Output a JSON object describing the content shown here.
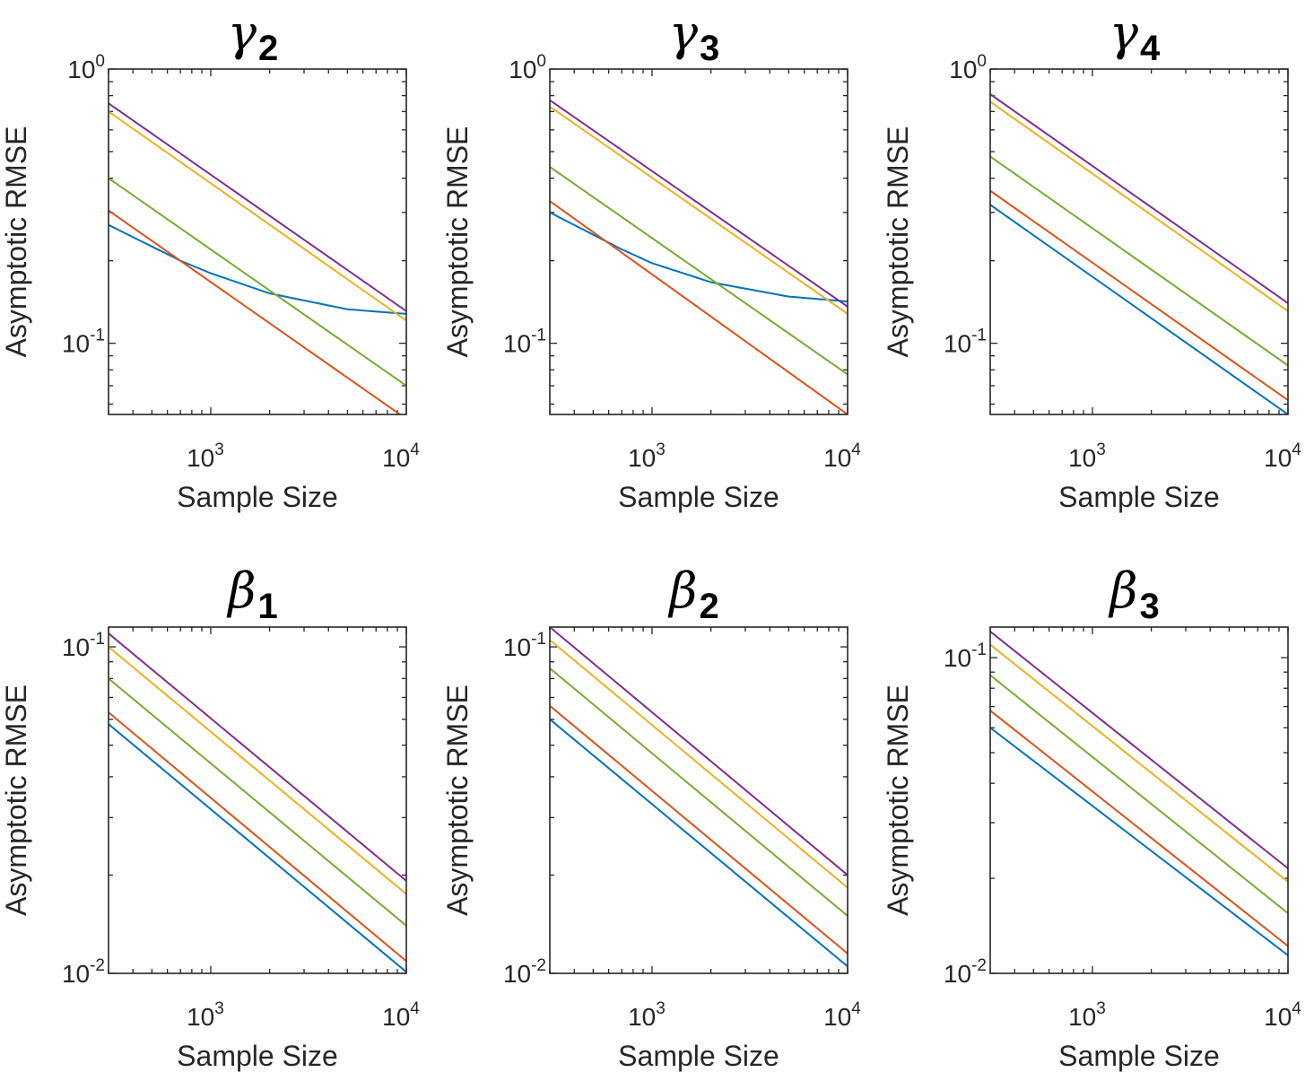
{
  "chart_data": [
    {
      "type": "line",
      "title_symbol": "γ",
      "title_subscript": "2",
      "xlabel": "Sample Size",
      "ylabel": "Asymptotic RMSE",
      "xscale": "log",
      "yscale": "log",
      "xlim": [
        300,
        10000
      ],
      "ylim": [
        0.055,
        1.0
      ],
      "xticks": [
        {
          "base": "10",
          "exp": "3",
          "value": 1000
        },
        {
          "base": "10",
          "exp": "4",
          "value": 10000
        }
      ],
      "yticks": [
        {
          "base": "10",
          "exp": "-1",
          "value": 0.1
        },
        {
          "base": "10",
          "exp": "0",
          "value": 1.0
        }
      ],
      "series": [
        {
          "name": "blue",
          "color": "#0072BD",
          "x": [
            300,
            700,
            1000,
            2000,
            5000,
            10000
          ],
          "values": [
            0.27,
            0.2,
            0.18,
            0.152,
            0.133,
            0.128
          ]
        },
        {
          "name": "red",
          "color": "#D95319",
          "x": [
            300,
            10000
          ],
          "values": [
            0.305,
            0.053
          ]
        },
        {
          "name": "yellow",
          "color": "#EDB120",
          "x": [
            300,
            10000
          ],
          "values": [
            0.7,
            0.121
          ]
        },
        {
          "name": "purple",
          "color": "#7E2F8E",
          "x": [
            300,
            10000
          ],
          "values": [
            0.75,
            0.131
          ]
        },
        {
          "name": "green",
          "color": "#77AC30",
          "x": [
            300,
            10000
          ],
          "values": [
            0.4,
            0.07
          ]
        }
      ]
    },
    {
      "type": "line",
      "title_symbol": "γ",
      "title_subscript": "3",
      "xlabel": "Sample Size",
      "ylabel": "Asymptotic RMSE",
      "xscale": "log",
      "yscale": "log",
      "xlim": [
        300,
        10000
      ],
      "ylim": [
        0.055,
        1.0
      ],
      "xticks": [
        {
          "base": "10",
          "exp": "3",
          "value": 1000
        },
        {
          "base": "10",
          "exp": "4",
          "value": 10000
        }
      ],
      "yticks": [
        {
          "base": "10",
          "exp": "-1",
          "value": 0.1
        },
        {
          "base": "10",
          "exp": "0",
          "value": 1.0
        }
      ],
      "series": [
        {
          "name": "blue",
          "color": "#0072BD",
          "x": [
            300,
            700,
            1000,
            2000,
            5000,
            10000
          ],
          "values": [
            0.3,
            0.22,
            0.196,
            0.167,
            0.148,
            0.142
          ]
        },
        {
          "name": "red",
          "color": "#D95319",
          "x": [
            300,
            10000
          ],
          "values": [
            0.33,
            0.055
          ]
        },
        {
          "name": "yellow",
          "color": "#EDB120",
          "x": [
            300,
            10000
          ],
          "values": [
            0.73,
            0.128
          ]
        },
        {
          "name": "purple",
          "color": "#7E2F8E",
          "x": [
            300,
            10000
          ],
          "values": [
            0.77,
            0.136
          ]
        },
        {
          "name": "green",
          "color": "#77AC30",
          "x": [
            300,
            10000
          ],
          "values": [
            0.44,
            0.077
          ]
        }
      ]
    },
    {
      "type": "line",
      "title_symbol": "γ",
      "title_subscript": "4",
      "xlabel": "Sample Size",
      "ylabel": "Asymptotic RMSE",
      "xscale": "log",
      "yscale": "log",
      "xlim": [
        300,
        10000
      ],
      "ylim": [
        0.055,
        1.0
      ],
      "xticks": [
        {
          "base": "10",
          "exp": "3",
          "value": 1000
        },
        {
          "base": "10",
          "exp": "4",
          "value": 10000
        }
      ],
      "yticks": [
        {
          "base": "10",
          "exp": "-1",
          "value": 0.1
        },
        {
          "base": "10",
          "exp": "0",
          "value": 1.0
        }
      ],
      "series": [
        {
          "name": "blue",
          "color": "#0072BD",
          "x": [
            300,
            10000
          ],
          "values": [
            0.32,
            0.055
          ]
        },
        {
          "name": "red",
          "color": "#D95319",
          "x": [
            300,
            10000
          ],
          "values": [
            0.36,
            0.062
          ]
        },
        {
          "name": "yellow",
          "color": "#EDB120",
          "x": [
            300,
            10000
          ],
          "values": [
            0.76,
            0.131
          ]
        },
        {
          "name": "purple",
          "color": "#7E2F8E",
          "x": [
            300,
            10000
          ],
          "values": [
            0.81,
            0.14
          ]
        },
        {
          "name": "green",
          "color": "#77AC30",
          "x": [
            300,
            10000
          ],
          "values": [
            0.48,
            0.083
          ]
        }
      ]
    },
    {
      "type": "line",
      "title_symbol": "β",
      "title_subscript": "1",
      "xlabel": "Sample Size",
      "ylabel": "Asymptotic RMSE",
      "xscale": "log",
      "yscale": "log",
      "xlim": [
        300,
        10000
      ],
      "ylim": [
        0.01,
        0.115
      ],
      "xticks": [
        {
          "base": "10",
          "exp": "3",
          "value": 1000
        },
        {
          "base": "10",
          "exp": "4",
          "value": 10000
        }
      ],
      "yticks": [
        {
          "base": "10",
          "exp": "-2",
          "value": 0.01
        },
        {
          "base": "10",
          "exp": "-1",
          "value": 0.1
        }
      ],
      "series": [
        {
          "name": "blue",
          "color": "#0072BD",
          "x": [
            300,
            10000
          ],
          "values": [
            0.058,
            0.0101
          ]
        },
        {
          "name": "red",
          "color": "#D95319",
          "x": [
            300,
            10000
          ],
          "values": [
            0.063,
            0.0109
          ]
        },
        {
          "name": "yellow",
          "color": "#EDB120",
          "x": [
            300,
            10000
          ],
          "values": [
            0.1,
            0.0175
          ]
        },
        {
          "name": "purple",
          "color": "#7E2F8E",
          "x": [
            300,
            10000
          ],
          "values": [
            0.11,
            0.0192
          ]
        },
        {
          "name": "green",
          "color": "#77AC30",
          "x": [
            300,
            10000
          ],
          "values": [
            0.08,
            0.014
          ]
        }
      ]
    },
    {
      "type": "line",
      "title_symbol": "β",
      "title_subscript": "2",
      "xlabel": "Sample Size",
      "ylabel": "Asymptotic RMSE",
      "xscale": "log",
      "yscale": "log",
      "xlim": [
        300,
        10000
      ],
      "ylim": [
        0.01,
        0.115
      ],
      "xticks": [
        {
          "base": "10",
          "exp": "3",
          "value": 1000
        },
        {
          "base": "10",
          "exp": "4",
          "value": 10000
        }
      ],
      "yticks": [
        {
          "base": "10",
          "exp": "-2",
          "value": 0.01
        },
        {
          "base": "10",
          "exp": "-1",
          "value": 0.1
        }
      ],
      "series": [
        {
          "name": "blue",
          "color": "#0072BD",
          "x": [
            300,
            10000
          ],
          "values": [
            0.06,
            0.0105
          ]
        },
        {
          "name": "red",
          "color": "#D95319",
          "x": [
            300,
            10000
          ],
          "values": [
            0.066,
            0.0115
          ]
        },
        {
          "name": "yellow",
          "color": "#EDB120",
          "x": [
            300,
            10000
          ],
          "values": [
            0.105,
            0.0183
          ]
        },
        {
          "name": "purple",
          "color": "#7E2F8E",
          "x": [
            300,
            10000
          ],
          "values": [
            0.115,
            0.02
          ]
        },
        {
          "name": "green",
          "color": "#77AC30",
          "x": [
            300,
            10000
          ],
          "values": [
            0.086,
            0.015
          ]
        }
      ]
    },
    {
      "type": "line",
      "title_symbol": "β",
      "title_subscript": "3",
      "xlabel": "Sample Size",
      "ylabel": "Asymptotic RMSE",
      "xscale": "log",
      "yscale": "log",
      "xlim": [
        300,
        10000
      ],
      "ylim": [
        0.01,
        0.125
      ],
      "xticks": [
        {
          "base": "10",
          "exp": "3",
          "value": 1000
        },
        {
          "base": "10",
          "exp": "4",
          "value": 10000
        }
      ],
      "yticks": [
        {
          "base": "10",
          "exp": "-2",
          "value": 0.01
        },
        {
          "base": "10",
          "exp": "-1",
          "value": 0.1
        }
      ],
      "series": [
        {
          "name": "blue",
          "color": "#0072BD",
          "x": [
            300,
            10000
          ],
          "values": [
            0.06,
            0.0114
          ]
        },
        {
          "name": "red",
          "color": "#D95319",
          "x": [
            300,
            10000
          ],
          "values": [
            0.068,
            0.0122
          ]
        },
        {
          "name": "yellow",
          "color": "#EDB120",
          "x": [
            300,
            10000
          ],
          "values": [
            0.11,
            0.0195
          ]
        },
        {
          "name": "purple",
          "color": "#7E2F8E",
          "x": [
            300,
            10000
          ],
          "values": [
            0.121,
            0.0215
          ]
        },
        {
          "name": "green",
          "color": "#77AC30",
          "x": [
            300,
            10000
          ],
          "values": [
            0.088,
            0.0155
          ]
        }
      ]
    }
  ]
}
